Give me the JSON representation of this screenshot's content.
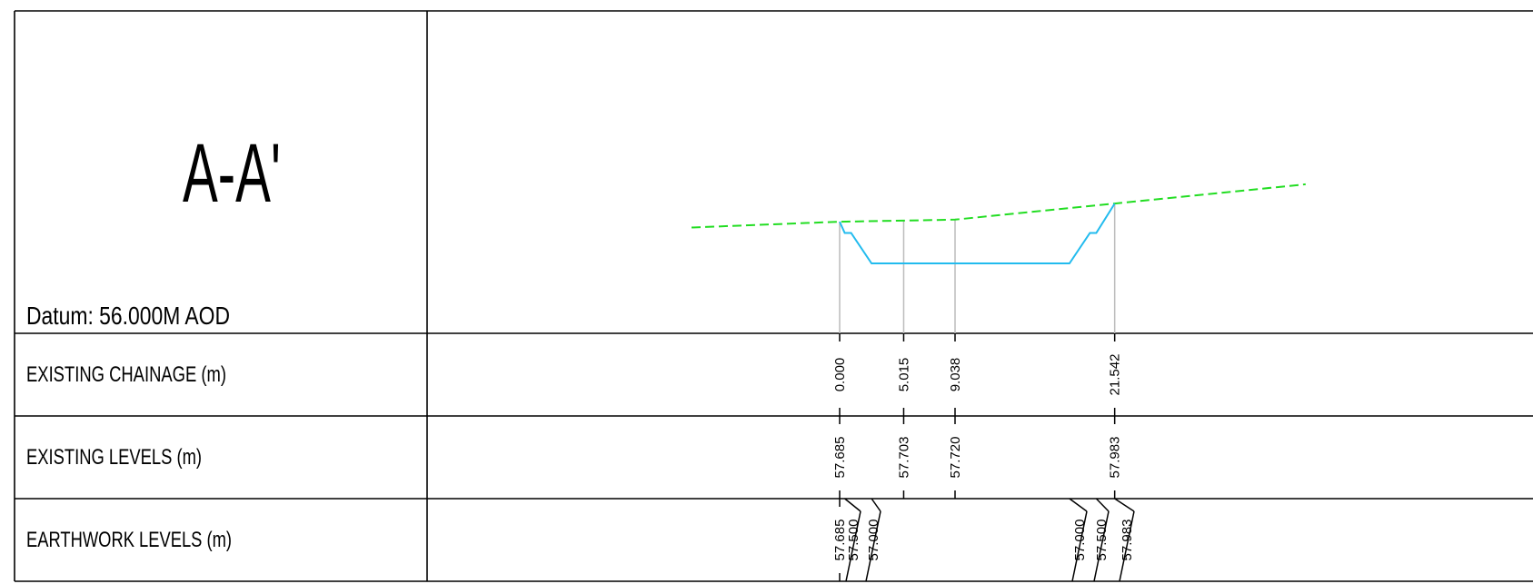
{
  "title": "A-A'",
  "datum": "Datum: 56.000M AOD",
  "rows": {
    "chainage_label": "EXISTING CHAINAGE (m)",
    "levels_label": "EXISTING LEVELS (m)",
    "earthwork_label": "EARTHWORK LEVELS (m)"
  },
  "colors": {
    "existing_ground": "#22dd22",
    "earthwork": "#22bbee",
    "leader": "#bbbbbb",
    "border": "#000000"
  },
  "chart_data": {
    "type": "line",
    "series": [
      {
        "points": [
          [
            -11.6,
            57.59
          ],
          [
            0.0,
            57.685
          ],
          [
            5.015,
            57.703
          ],
          [
            9.038,
            57.72
          ],
          [
            21.542,
            57.983
          ],
          [
            36.5,
            58.3
          ]
        ]
      },
      {
        "points": [
          [
            0.0,
            57.685
          ],
          [
            0.4,
            57.5
          ],
          [
            0.9,
            57.5
          ],
          [
            2.5,
            57.0
          ],
          [
            18.0,
            57.0
          ],
          [
            19.6,
            57.5
          ],
          [
            20.1,
            57.5
          ],
          [
            21.542,
            57.983
          ]
        ]
      }
    ]
  },
  "stations": [
    {
      "chainage": "0.000",
      "level": "57.685"
    },
    {
      "chainage": "5.015",
      "level": "57.703"
    },
    {
      "chainage": "9.038",
      "level": "57.720"
    },
    {
      "chainage": "21.542",
      "level": "57.983"
    }
  ],
  "earthwork_levels": [
    "57.685",
    "57.500",
    "57.000",
    "57.000",
    "57.500",
    "57.983"
  ]
}
